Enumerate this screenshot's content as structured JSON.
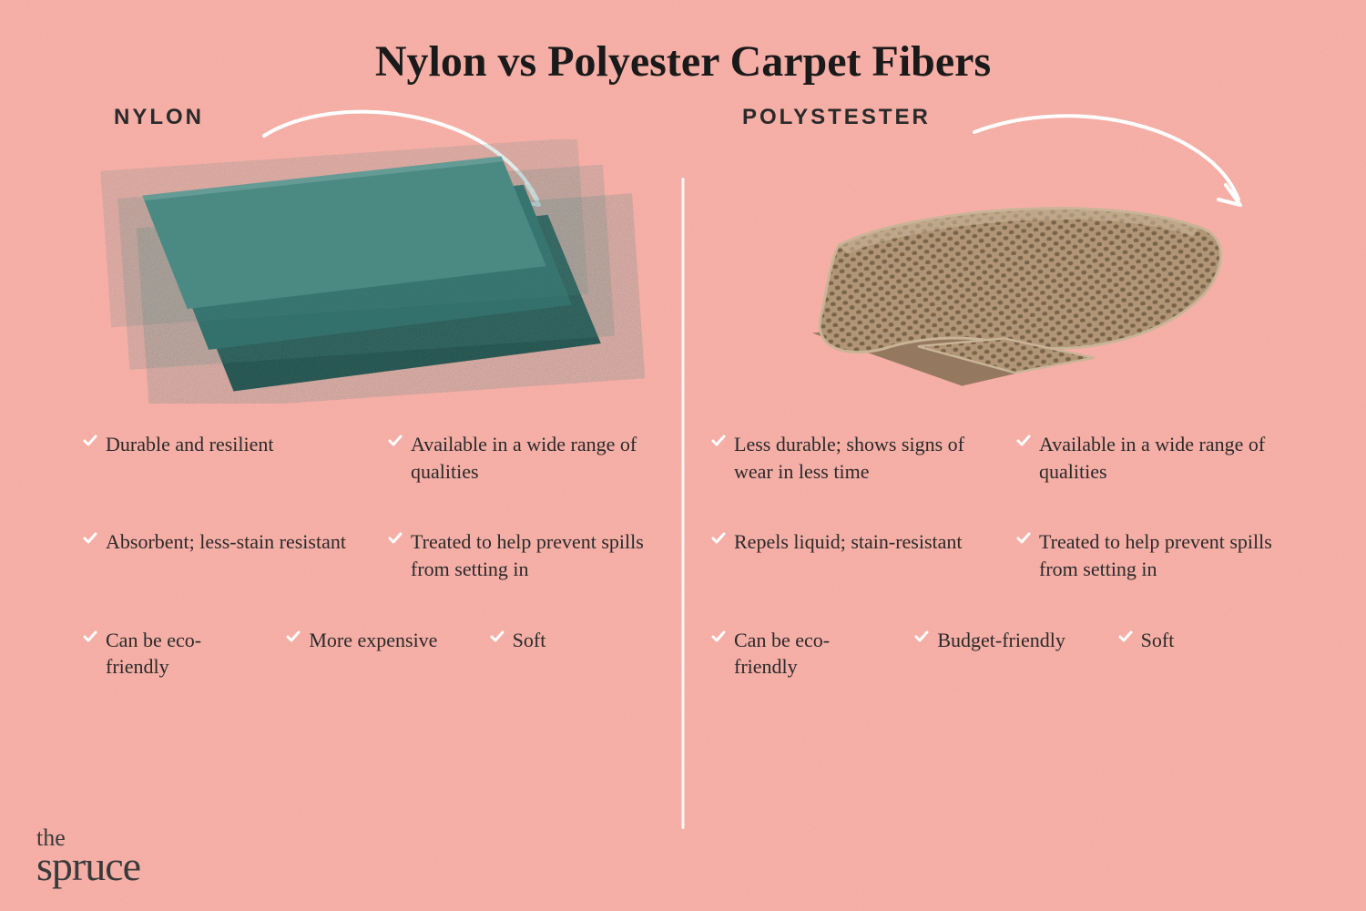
{
  "title": "Nylon vs Polyester Carpet Fibers",
  "title_fontsize": 48,
  "title_color": "#1a1a1a",
  "background_color": "#f4a9a0",
  "background_noise_color": "#f8c5bd",
  "divider_color": "#ffffff",
  "text_color": "#2a2a2a",
  "check_color": "#ffffff",
  "label_fontsize": 24,
  "feature_fontsize": 22,
  "left": {
    "label": "NYLON",
    "illustration": {
      "type": "stacked-carpet-swatches",
      "primary_color": "#2d6b66",
      "shadow_color": "#1e4a46",
      "highlight_color": "#4a8a83",
      "texture_noise_color": "#184440"
    },
    "rows": [
      [
        "Durable and resilient",
        "Available in a wide range of qualities"
      ],
      [
        "Absorbent; less-stain resistant",
        "Treated to help prevent spills from setting in"
      ],
      [
        "Can be eco-friendly",
        "More expensive",
        "Soft"
      ]
    ]
  },
  "right": {
    "label": "POLYSTESTER",
    "illustration": {
      "type": "folded-woven-carpet",
      "primary_color": "#b09576",
      "shadow_color": "#8a7358",
      "highlight_color": "#c9b497",
      "weave_dot_color": "#7a6449"
    },
    "rows": [
      [
        "Less durable; shows signs of wear in less time",
        "Available in a wide range of qualities"
      ],
      [
        "Repels liquid; stain-resistant",
        "Treated to help prevent spills from setting in"
      ],
      [
        "Can be eco-friendly",
        "Budget-friendly",
        "Soft"
      ]
    ]
  },
  "arrow_color": "#ffffff",
  "logo": {
    "line1": "the",
    "line2": "spruce",
    "color": "#3a3a3a"
  }
}
